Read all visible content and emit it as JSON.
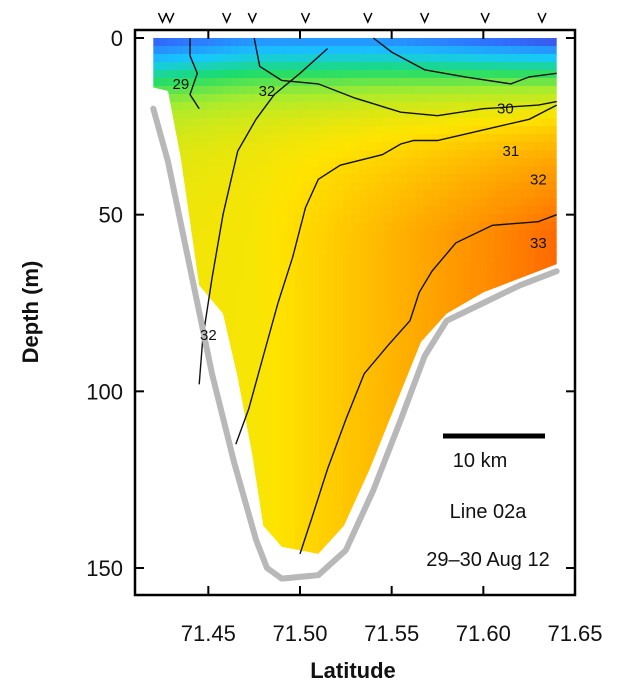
{
  "chart_data": {
    "type": "heatmap",
    "description_kind": "ocean section (salinity-style colour field with contours)",
    "xlabel": "Latitude",
    "ylabel": "Depth (m)",
    "x_ticks": [
      "71.45",
      "71.50",
      "71.55",
      "71.60",
      "71.65"
    ],
    "x_tick_values": [
      71.45,
      71.5,
      71.55,
      71.6,
      71.65
    ],
    "y_ticks": [
      "0",
      "50",
      "100",
      "150"
    ],
    "y_tick_values": [
      0,
      50,
      100,
      150
    ],
    "xlim": [
      71.41,
      71.65
    ],
    "ylim": [
      160,
      0
    ],
    "y_inverted": true,
    "station_latitudes": [
      71.425,
      71.429,
      71.46,
      71.474,
      71.503,
      71.537,
      71.568,
      71.601,
      71.632
    ],
    "contour_labels": [
      {
        "label": "29",
        "lat": 71.435,
        "depth": 13
      },
      {
        "label": "32",
        "lat": 71.482,
        "depth": 15
      },
      {
        "label": "30",
        "lat": 71.612,
        "depth": 20
      },
      {
        "label": "31",
        "lat": 71.615,
        "depth": 32
      },
      {
        "label": "32",
        "lat": 71.63,
        "depth": 40
      },
      {
        "label": "33",
        "lat": 71.63,
        "depth": 58
      },
      {
        "label": "32",
        "lat": 71.45,
        "depth": 84
      }
    ],
    "contours": [
      {
        "level": 29,
        "points": [
          [
            71.44,
            0
          ],
          [
            71.44,
            5
          ],
          [
            71.444,
            10
          ],
          [
            71.44,
            16
          ],
          [
            71.445,
            20
          ]
        ]
      },
      {
        "level": 30,
        "points": [
          [
            71.54,
            0
          ],
          [
            71.55,
            4
          ],
          [
            71.568,
            9
          ],
          [
            71.59,
            11
          ],
          [
            71.615,
            13
          ],
          [
            71.625,
            11
          ],
          [
            71.64,
            10
          ]
        ]
      },
      {
        "level": 31,
        "points": [
          [
            71.475,
            0
          ],
          [
            71.478,
            8
          ],
          [
            71.49,
            12
          ],
          [
            71.51,
            13
          ],
          [
            71.53,
            17
          ],
          [
            71.555,
            21
          ],
          [
            71.575,
            22
          ],
          [
            71.6,
            20
          ],
          [
            71.63,
            19
          ],
          [
            71.64,
            18
          ]
        ]
      },
      {
        "level": 32,
        "points": [
          [
            71.515,
            3
          ],
          [
            71.5,
            10
          ],
          [
            71.486,
            16
          ],
          [
            71.476,
            23
          ],
          [
            71.466,
            32
          ],
          [
            71.458,
            50
          ],
          [
            71.452,
            68
          ],
          [
            71.447,
            85
          ],
          [
            71.445,
            98
          ]
        ]
      },
      {
        "level": 32,
        "points": [
          [
            71.64,
            19
          ],
          [
            71.625,
            23
          ],
          [
            71.6,
            26
          ],
          [
            71.575,
            29
          ],
          [
            71.562,
            29
          ],
          [
            71.555,
            30
          ],
          [
            71.545,
            33
          ],
          [
            71.522,
            36
          ],
          [
            71.51,
            40
          ],
          [
            71.503,
            48
          ],
          [
            71.496,
            62
          ],
          [
            71.488,
            75
          ],
          [
            71.48,
            90
          ],
          [
            71.472,
            105
          ],
          [
            71.465,
            115
          ]
        ]
      },
      {
        "level": 33,
        "points": [
          [
            71.64,
            50
          ],
          [
            71.63,
            52
          ],
          [
            71.605,
            53
          ],
          [
            71.585,
            58
          ],
          [
            71.572,
            66
          ],
          [
            71.565,
            72
          ],
          [
            71.56,
            80
          ],
          [
            71.548,
            87
          ],
          [
            71.535,
            95
          ],
          [
            71.525,
            108
          ],
          [
            71.515,
            122
          ],
          [
            71.507,
            135
          ],
          [
            71.5,
            146
          ]
        ]
      }
    ],
    "bottom_profile": [
      [
        71.42,
        20
      ],
      [
        71.428,
        35
      ],
      [
        71.44,
        65
      ],
      [
        71.452,
        95
      ],
      [
        71.464,
        120
      ],
      [
        71.476,
        142
      ],
      [
        71.482,
        150
      ],
      [
        71.49,
        153
      ],
      [
        71.51,
        152
      ],
      [
        71.525,
        145
      ],
      [
        71.54,
        128
      ],
      [
        71.555,
        108
      ],
      [
        71.568,
        90
      ],
      [
        71.58,
        80
      ],
      [
        71.6,
        75
      ],
      [
        71.62,
        70
      ],
      [
        71.64,
        66
      ]
    ],
    "data_region": [
      [
        71.42,
        0
      ],
      [
        71.64,
        0
      ],
      [
        71.64,
        64
      ],
      [
        71.6,
        72
      ],
      [
        71.58,
        78
      ],
      [
        71.566,
        86
      ],
      [
        71.552,
        104
      ],
      [
        71.538,
        122
      ],
      [
        71.524,
        138
      ],
      [
        71.51,
        146
      ],
      [
        71.49,
        144
      ],
      [
        71.48,
        138
      ],
      [
        71.474,
        118
      ],
      [
        71.466,
        96
      ],
      [
        71.458,
        78
      ],
      [
        71.445,
        70
      ],
      [
        71.435,
        34
      ],
      [
        71.428,
        15
      ],
      [
        71.42,
        14
      ]
    ],
    "colour_scale": [
      "#5b0d9c",
      "#2f6fff",
      "#17c8ff",
      "#1bdc6c",
      "#a6ec2e",
      "#ffe400",
      "#ff8a00",
      "#ff1a00"
    ],
    "colour_scale_range": [
      28,
      34
    ],
    "scale_bar_label": "10 km",
    "annotations": [
      "Line 02a",
      "29–30 Aug 12"
    ]
  }
}
